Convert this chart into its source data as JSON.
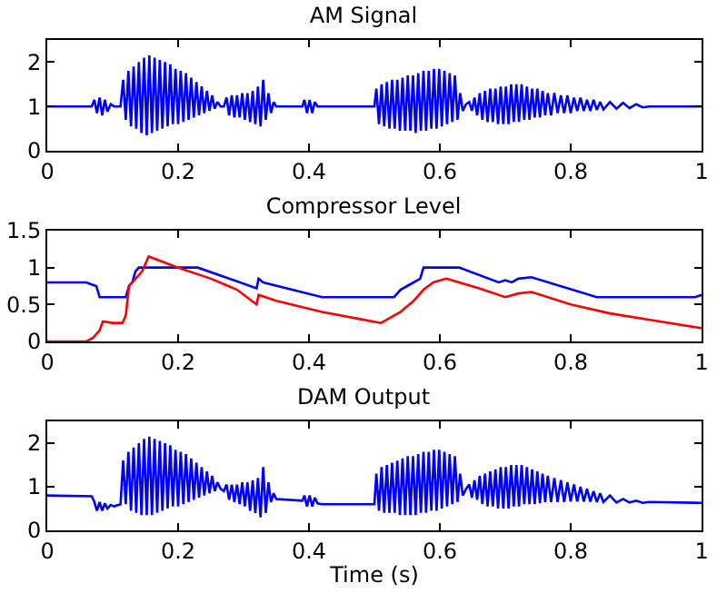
{
  "chart_data": [
    {
      "type": "line",
      "title": "AM Signal",
      "xlim": [
        0,
        1
      ],
      "xticks": [
        0,
        0.2,
        0.4,
        0.6,
        0.8,
        1
      ],
      "ylim": [
        0,
        2.5
      ],
      "yticks": [
        0,
        1,
        2
      ],
      "series": [
        {
          "color": "#0000ff",
          "x": [
            0,
            0.068,
            0.072,
            0.076,
            0.08,
            0.084,
            0.088,
            0.092,
            0.097,
            0.102,
            0.112,
            0.116,
            0.12,
            0.124,
            0.128,
            0.132,
            0.136,
            0.14,
            0.144,
            0.148,
            0.152,
            0.156,
            0.16,
            0.164,
            0.168,
            0.172,
            0.176,
            0.18,
            0.184,
            0.188,
            0.192,
            0.196,
            0.2,
            0.204,
            0.208,
            0.212,
            0.216,
            0.22,
            0.224,
            0.228,
            0.232,
            0.236,
            0.24,
            0.244,
            0.248,
            0.252,
            0.256,
            0.26,
            0.265,
            0.27,
            0.274,
            0.278,
            0.282,
            0.286,
            0.29,
            0.294,
            0.298,
            0.302,
            0.306,
            0.31,
            0.314,
            0.318,
            0.322,
            0.326,
            0.33,
            0.334,
            0.338,
            0.342,
            0.346,
            0.35,
            0.39,
            0.393,
            0.397,
            0.401,
            0.405,
            0.409,
            0.413,
            0.5,
            0.503,
            0.507,
            0.511,
            0.515,
            0.519,
            0.523,
            0.527,
            0.531,
            0.535,
            0.539,
            0.543,
            0.547,
            0.551,
            0.555,
            0.559,
            0.563,
            0.567,
            0.571,
            0.575,
            0.579,
            0.583,
            0.587,
            0.591,
            0.595,
            0.599,
            0.603,
            0.607,
            0.611,
            0.615,
            0.619,
            0.623,
            0.627,
            0.631,
            0.635,
            0.64,
            0.645,
            0.649,
            0.653,
            0.657,
            0.661,
            0.665,
            0.669,
            0.673,
            0.677,
            0.681,
            0.685,
            0.689,
            0.693,
            0.697,
            0.701,
            0.705,
            0.709,
            0.713,
            0.717,
            0.721,
            0.725,
            0.729,
            0.733,
            0.737,
            0.741,
            0.745,
            0.749,
            0.753,
            0.757,
            0.761,
            0.765,
            0.77,
            0.775,
            0.78,
            0.785,
            0.79,
            0.795,
            0.8,
            0.805,
            0.81,
            0.815,
            0.82,
            0.825,
            0.83,
            0.835,
            0.84,
            0.845,
            0.85,
            0.86,
            0.87,
            0.88,
            0.89,
            0.9,
            0.91,
            0.92,
            1
          ],
          "values": [
            1,
            1,
            1.15,
            0.85,
            1.2,
            0.8,
            1.15,
            0.88,
            1.05,
            1,
            1,
            1.6,
            0.7,
            1.8,
            0.55,
            1.9,
            0.5,
            2.0,
            0.4,
            2.1,
            0.35,
            2.15,
            0.4,
            2.1,
            0.45,
            2.05,
            0.5,
            2.0,
            0.55,
            1.95,
            0.6,
            1.85,
            0.6,
            1.8,
            0.65,
            1.75,
            0.7,
            1.65,
            0.75,
            1.55,
            0.8,
            1.45,
            0.85,
            1.35,
            0.9,
            1.25,
            0.95,
            1.1,
            1,
            1,
            1.2,
            0.8,
            1.25,
            0.75,
            1.25,
            0.75,
            1.3,
            0.7,
            1.3,
            0.65,
            1.35,
            0.6,
            1.45,
            0.55,
            1.6,
            0.7,
            1.3,
            0.85,
            1.1,
            1,
            1,
            1.15,
            0.85,
            1.15,
            0.85,
            1.1,
            1,
            1,
            1.4,
            0.6,
            1.5,
            0.55,
            1.55,
            0.5,
            1.6,
            0.5,
            1.6,
            0.45,
            1.65,
            0.45,
            1.7,
            0.45,
            1.7,
            0.4,
            1.75,
            0.45,
            1.8,
            0.45,
            1.8,
            0.5,
            1.85,
            0.5,
            1.85,
            0.55,
            1.8,
            0.6,
            1.75,
            0.65,
            1.7,
            0.7,
            1.3,
            0.9,
            1.05,
            1.1,
            0.9,
            1.2,
            0.8,
            1.3,
            0.7,
            1.35,
            0.65,
            1.4,
            0.65,
            1.4,
            0.6,
            1.45,
            0.6,
            1.45,
            0.6,
            1.5,
            0.65,
            1.5,
            0.65,
            1.5,
            0.7,
            1.45,
            0.7,
            1.4,
            0.75,
            1.4,
            0.75,
            1.35,
            0.8,
            1.3,
            0.8,
            1.3,
            0.85,
            1.25,
            0.85,
            1.25,
            0.85,
            1.2,
            0.9,
            1.2,
            0.9,
            1.15,
            0.9,
            1.15,
            0.92,
            1.1,
            0.93,
            1.1,
            0.95,
            1.08,
            0.96,
            1.05,
            0.98,
            1,
            1
          ]
        }
      ]
    },
    {
      "type": "line",
      "title": "Compressor Level",
      "xlim": [
        0,
        1
      ],
      "xticks": [
        0,
        0.2,
        0.4,
        0.6,
        0.8,
        1
      ],
      "ylim": [
        0,
        1.5
      ],
      "yticks": [
        0,
        0.5,
        1,
        1.5
      ],
      "series": [
        {
          "color": "#0000ff",
          "x": [
            0,
            0.06,
            0.065,
            0.075,
            0.08,
            0.12,
            0.125,
            0.13,
            0.135,
            0.14,
            0.23,
            0.32,
            0.323,
            0.33,
            0.42,
            0.53,
            0.54,
            0.55,
            0.57,
            0.575,
            0.63,
            0.69,
            0.7,
            0.71,
            0.72,
            0.74,
            0.84,
            0.99,
            1
          ],
          "values": [
            0.8,
            0.8,
            0.78,
            0.75,
            0.6,
            0.6,
            0.75,
            0.8,
            0.95,
            1,
            1,
            0.72,
            0.85,
            0.8,
            0.6,
            0.6,
            0.7,
            0.75,
            0.85,
            1,
            1,
            0.8,
            0.83,
            0.8,
            0.85,
            0.87,
            0.6,
            0.6,
            0.63
          ]
        },
        {
          "color": "#ff0000",
          "x": [
            0,
            0.06,
            0.07,
            0.08,
            0.085,
            0.1,
            0.115,
            0.12,
            0.125,
            0.14,
            0.145,
            0.155,
            0.2,
            0.25,
            0.29,
            0.32,
            0.323,
            0.35,
            0.42,
            0.48,
            0.51,
            0.52,
            0.54,
            0.56,
            0.575,
            0.59,
            0.61,
            0.66,
            0.7,
            0.72,
            0.74,
            0.8,
            0.86,
            0.93,
            1
          ],
          "values": [
            0,
            0,
            0.05,
            0.15,
            0.27,
            0.25,
            0.25,
            0.35,
            0.75,
            0.9,
            0.95,
            1.15,
            1,
            0.85,
            0.7,
            0.5,
            0.63,
            0.55,
            0.4,
            0.3,
            0.25,
            0.3,
            0.4,
            0.55,
            0.7,
            0.8,
            0.85,
            0.72,
            0.6,
            0.65,
            0.67,
            0.5,
            0.38,
            0.28,
            0.18
          ]
        }
      ]
    },
    {
      "type": "line",
      "title": "DAM Output",
      "xlabel": "Time (s)",
      "xlim": [
        0,
        1
      ],
      "xticks": [
        0,
        0.2,
        0.4,
        0.6,
        0.8,
        1
      ],
      "ylim": [
        0,
        2.5
      ],
      "yticks": [
        0,
        1,
        2
      ],
      "series": [
        {
          "color": "#0000ff",
          "x": [
            0,
            0.068,
            0.072,
            0.076,
            0.08,
            0.084,
            0.088,
            0.092,
            0.097,
            0.102,
            0.112,
            0.116,
            0.12,
            0.124,
            0.128,
            0.132,
            0.136,
            0.14,
            0.144,
            0.148,
            0.152,
            0.156,
            0.16,
            0.164,
            0.168,
            0.172,
            0.176,
            0.18,
            0.184,
            0.188,
            0.192,
            0.196,
            0.2,
            0.204,
            0.208,
            0.212,
            0.216,
            0.22,
            0.224,
            0.228,
            0.232,
            0.236,
            0.24,
            0.244,
            0.248,
            0.252,
            0.256,
            0.26,
            0.265,
            0.27,
            0.274,
            0.278,
            0.282,
            0.286,
            0.29,
            0.294,
            0.298,
            0.302,
            0.306,
            0.31,
            0.314,
            0.318,
            0.322,
            0.326,
            0.33,
            0.334,
            0.338,
            0.342,
            0.346,
            0.35,
            0.39,
            0.393,
            0.397,
            0.401,
            0.405,
            0.409,
            0.413,
            0.42,
            0.5,
            0.503,
            0.507,
            0.511,
            0.515,
            0.519,
            0.523,
            0.527,
            0.531,
            0.535,
            0.539,
            0.543,
            0.547,
            0.551,
            0.555,
            0.559,
            0.563,
            0.567,
            0.571,
            0.575,
            0.579,
            0.583,
            0.587,
            0.591,
            0.595,
            0.599,
            0.603,
            0.607,
            0.611,
            0.615,
            0.619,
            0.623,
            0.627,
            0.631,
            0.635,
            0.64,
            0.645,
            0.649,
            0.653,
            0.657,
            0.661,
            0.665,
            0.669,
            0.673,
            0.677,
            0.681,
            0.685,
            0.689,
            0.693,
            0.697,
            0.701,
            0.705,
            0.709,
            0.713,
            0.717,
            0.721,
            0.725,
            0.729,
            0.733,
            0.737,
            0.741,
            0.745,
            0.749,
            0.753,
            0.757,
            0.761,
            0.765,
            0.77,
            0.775,
            0.78,
            0.785,
            0.79,
            0.795,
            0.8,
            0.805,
            0.81,
            0.815,
            0.82,
            0.825,
            0.83,
            0.835,
            0.84,
            0.845,
            0.85,
            0.86,
            0.87,
            0.88,
            0.89,
            0.9,
            0.91,
            0.92,
            1
          ],
          "values": [
            0.8,
            0.78,
            0.65,
            0.45,
            0.65,
            0.45,
            0.62,
            0.5,
            0.58,
            0.55,
            0.6,
            1.6,
            0.6,
            1.8,
            0.45,
            1.9,
            0.4,
            2.0,
            0.35,
            2.1,
            0.35,
            2.15,
            0.35,
            2.1,
            0.4,
            2.05,
            0.45,
            2.0,
            0.5,
            1.95,
            0.55,
            1.85,
            0.55,
            1.8,
            0.6,
            1.75,
            0.65,
            1.65,
            0.7,
            1.55,
            0.75,
            1.45,
            0.8,
            1.35,
            0.85,
            1.25,
            0.9,
            1.1,
            0.95,
            0.9,
            1.05,
            0.7,
            1.05,
            0.65,
            1.05,
            0.6,
            1.1,
            0.55,
            1.1,
            0.45,
            1.15,
            0.4,
            1.2,
            0.3,
            1.45,
            0.4,
            1.1,
            0.65,
            0.85,
            0.72,
            0.68,
            0.8,
            0.55,
            0.8,
            0.55,
            0.75,
            0.62,
            0.6,
            0.6,
            1.3,
            0.45,
            1.45,
            0.4,
            1.5,
            0.4,
            1.55,
            0.4,
            1.6,
            0.35,
            1.65,
            0.35,
            1.7,
            0.35,
            1.7,
            0.35,
            1.75,
            0.4,
            1.8,
            0.4,
            1.8,
            0.45,
            1.85,
            0.45,
            1.85,
            0.5,
            1.8,
            0.55,
            1.75,
            0.6,
            1.7,
            0.65,
            1.3,
            0.8,
            0.95,
            1.05,
            0.75,
            1.15,
            0.7,
            1.25,
            0.6,
            1.3,
            0.55,
            1.35,
            0.55,
            1.4,
            0.5,
            1.45,
            0.5,
            1.45,
            0.5,
            1.5,
            0.55,
            1.5,
            0.55,
            1.5,
            0.6,
            1.45,
            0.6,
            1.4,
            0.6,
            1.35,
            0.62,
            1.3,
            0.65,
            1.25,
            0.65,
            1.2,
            0.65,
            1.15,
            0.65,
            1.1,
            0.66,
            1.05,
            0.66,
            1.0,
            0.66,
            0.95,
            0.66,
            0.9,
            0.65,
            0.85,
            0.65,
            0.8,
            0.64,
            0.72,
            0.64,
            0.68,
            0.63,
            0.65,
            0.63
          ]
        }
      ]
    }
  ]
}
